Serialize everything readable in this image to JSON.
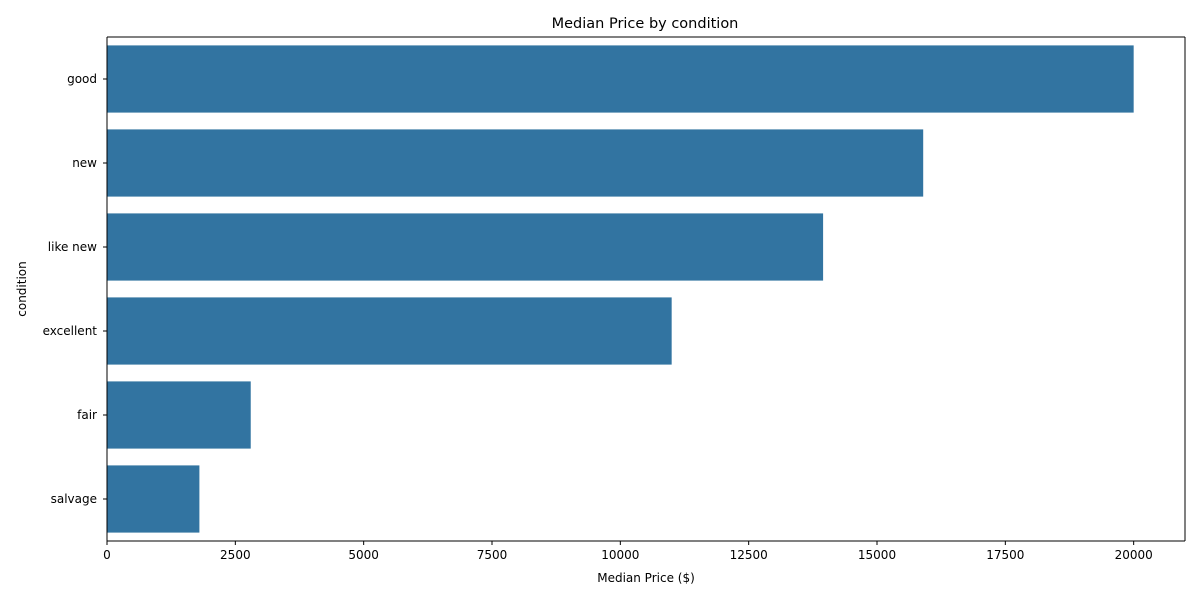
{
  "chart_data": {
    "type": "bar",
    "orientation": "horizontal",
    "title": "Median Price by condition",
    "xlabel": "Median Price ($)",
    "ylabel": "condition",
    "categories": [
      "good",
      "new",
      "like new",
      "excellent",
      "fair",
      "salvage"
    ],
    "values": [
      20000,
      15900,
      13950,
      11000,
      2800,
      1800
    ],
    "xlim": [
      0,
      21000
    ],
    "xticks": [
      0,
      2500,
      5000,
      7500,
      10000,
      12500,
      15000,
      17500,
      20000
    ],
    "bar_color": "#3274a1",
    "grid": false,
    "legend": "none"
  }
}
